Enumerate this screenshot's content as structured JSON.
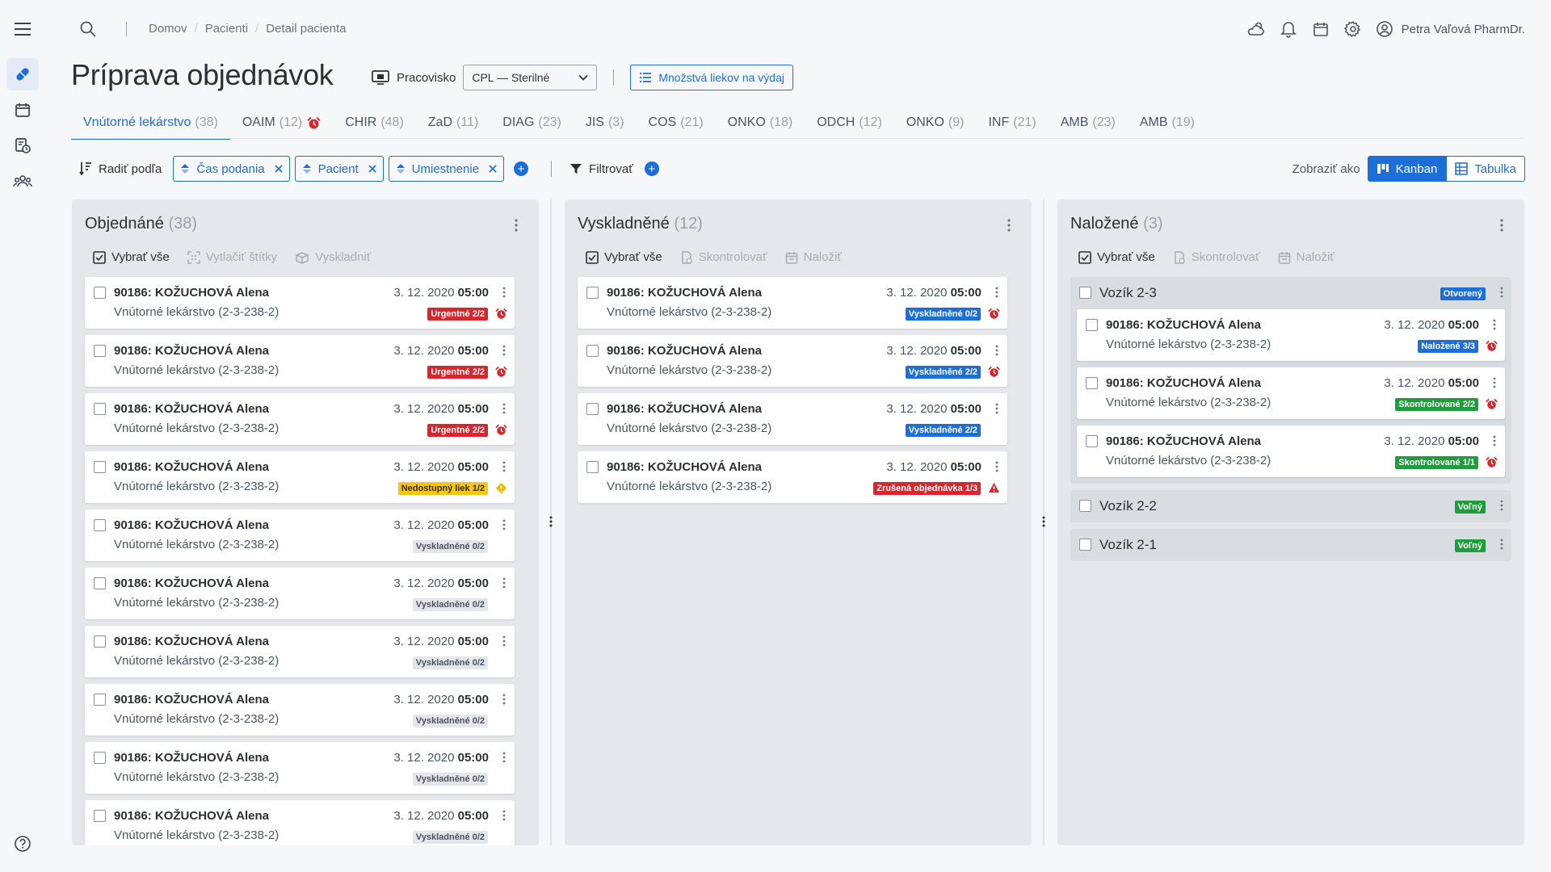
{
  "breadcrumbs": [
    "Domov",
    "Pacienti",
    "Detail pacienta"
  ],
  "user": {
    "name": "Petra Vaľová PharmDr."
  },
  "page_title": "Príprava objednávok",
  "workplace": {
    "label": "Pracovisko",
    "value": "CPL — Sterilné"
  },
  "qty_button": "Množstvá liekov na výdaj",
  "tabs": [
    {
      "label": "Vnútorné lekárstvo",
      "count": "(38)"
    },
    {
      "label": "OAIM",
      "count": "(12)"
    },
    {
      "label": "CHIR",
      "count": "(48)"
    },
    {
      "label": "ZaD",
      "count": "(11)"
    },
    {
      "label": "DIAG",
      "count": "(23)"
    },
    {
      "label": "JIS",
      "count": "(3)"
    },
    {
      "label": "COS",
      "count": "(21)"
    },
    {
      "label": "ONKO",
      "count": "(18)"
    },
    {
      "label": "ODCH",
      "count": "(12)"
    },
    {
      "label": "ONKO",
      "count": "(9)"
    },
    {
      "label": "INF",
      "count": "(21)"
    },
    {
      "label": "AMB",
      "count": "(23)"
    },
    {
      "label": "AMB",
      "count": "(19)"
    }
  ],
  "filterbar": {
    "sort_label": "Radiť podľa",
    "chips": [
      "Čas podania",
      "Pacient",
      "Umiestnenie"
    ],
    "filter_label": "Filtrovať",
    "view_label": "Zobraziť ako",
    "view_kanban": "Kanban",
    "view_table": "Tabulka"
  },
  "columns": [
    {
      "title": "Objednáné",
      "count": "(38)",
      "actions": [
        "Vybrať vše",
        "Vytlačiť štítky",
        "Vyskladniť"
      ],
      "cards": [
        {
          "patient": "90186: KOŽUCHOVÁ Alena",
          "location": "Vnútorné lekárstvo (2-3-238-2)",
          "date": "3. 12. 2020",
          "time": "05:00",
          "badge": "Urgentné 2/2",
          "badge_color": "#d8262c",
          "status_icon": "alarm-clock-icon"
        },
        {
          "patient": "90186: KOŽUCHOVÁ Alena",
          "location": "Vnútorné lekárstvo (2-3-238-2)",
          "date": "3. 12. 2020",
          "time": "05:00",
          "badge": "Urgentné 2/2",
          "badge_color": "#d8262c",
          "status_icon": "alarm-clock-icon"
        },
        {
          "patient": "90186: KOŽUCHOVÁ Alena",
          "location": "Vnútorné lekárstvo (2-3-238-2)",
          "date": "3. 12. 2020",
          "time": "05:00",
          "badge": "Urgentné 2/2",
          "badge_color": "#d8262c",
          "status_icon": "alarm-clock-icon"
        },
        {
          "patient": "90186: KOŽUCHOVÁ Alena",
          "location": "Vnútorné lekárstvo (2-3-238-2)",
          "date": "3. 12. 2020",
          "time": "05:00",
          "badge": "Nedostupný liek 1/2",
          "badge_color": "#f5c518",
          "status_icon": "warning-diamond-icon"
        },
        {
          "patient": "90186: KOŽUCHOVÁ Alena",
          "location": "Vnútorné lekárstvo (2-3-238-2)",
          "date": "3. 12. 2020",
          "time": "05:00",
          "badge": "Vyskladněné 0/2",
          "badge_color": "#e4e6e9",
          "status_icon": ""
        },
        {
          "patient": "90186: KOŽUCHOVÁ Alena",
          "location": "Vnútorné lekárstvo (2-3-238-2)",
          "date": "3. 12. 2020",
          "time": "05:00",
          "badge": "Vyskladněné 0/2",
          "badge_color": "#e4e6e9",
          "status_icon": ""
        },
        {
          "patient": "90186: KOŽUCHOVÁ Alena",
          "location": "Vnútorné lekárstvo (2-3-238-2)",
          "date": "3. 12. 2020",
          "time": "05:00",
          "badge": "Vyskladněné 0/2",
          "badge_color": "#e4e6e9",
          "status_icon": ""
        },
        {
          "patient": "90186: KOŽUCHOVÁ Alena",
          "location": "Vnútorné lekárstvo (2-3-238-2)",
          "date": "3. 12. 2020",
          "time": "05:00",
          "badge": "Vyskladněné 0/2",
          "badge_color": "#e4e6e9",
          "status_icon": ""
        },
        {
          "patient": "90186: KOŽUCHOVÁ Alena",
          "location": "Vnútorné lekárstvo (2-3-238-2)",
          "date": "3. 12. 2020",
          "time": "05:00",
          "badge": "Vyskladněné 0/2",
          "badge_color": "#e4e6e9",
          "status_icon": ""
        },
        {
          "patient": "90186: KOŽUCHOVÁ Alena",
          "location": "Vnútorné lekárstvo (2-3-238-2)",
          "date": "3. 12. 2020",
          "time": "05:00",
          "badge": "Vyskladněné 0/2",
          "badge_color": "#e4e6e9",
          "status_icon": ""
        }
      ]
    },
    {
      "title": "Vyskladněné",
      "count": "(12)",
      "actions": [
        "Vybrať vše",
        "Skontrolovať",
        "Naložiť"
      ],
      "cards": [
        {
          "patient": "90186: KOŽUCHOVÁ Alena",
          "location": "Vnútorné lekárstvo (2-3-238-2)",
          "date": "3. 12. 2020",
          "time": "05:00",
          "badge": "Vyskladněné 0/2",
          "badge_color": "#1e6ed8",
          "status_icon": "alarm-clock-icon"
        },
        {
          "patient": "90186: KOŽUCHOVÁ Alena",
          "location": "Vnútorné lekárstvo (2-3-238-2)",
          "date": "3. 12. 2020",
          "time": "05:00",
          "badge": "Vyskladněné 2/2",
          "badge_color": "#1e6ed8",
          "status_icon": "alarm-clock-icon"
        },
        {
          "patient": "90186: KOŽUCHOVÁ Alena",
          "location": "Vnútorné lekárstvo (2-3-238-2)",
          "date": "3. 12. 2020",
          "time": "05:00",
          "badge": "Vyskladněné 2/2",
          "badge_color": "#1e6ed8",
          "status_icon": ""
        },
        {
          "patient": "90186: KOŽUCHOVÁ Alena",
          "location": "Vnútorné lekárstvo (2-3-238-2)",
          "date": "3. 12. 2020",
          "time": "05:00",
          "badge": "Zrušená objednávka 1/3",
          "badge_color": "#d8262c",
          "status_icon": "warning-triangle-icon"
        }
      ]
    },
    {
      "title": "Naložené",
      "count": "(3)",
      "actions": [
        "Vybrať vše",
        "Skontrolovať",
        "Naložiť"
      ],
      "groups": [
        {
          "name": "Vozík 2-3",
          "badge": "Otvorený",
          "badge_color": "#1e6ed8",
          "cards": [
            {
              "patient": "90186: KOŽUCHOVÁ Alena",
              "location": "Vnútorné lekárstvo (2-3-238-2)",
              "date": "3. 12. 2020",
              "time": "05:00",
              "badge": "Naložené 3/3",
              "badge_color": "#1e6ed8",
              "status_icon": "alarm-clock-icon"
            },
            {
              "patient": "90186: KOŽUCHOVÁ Alena",
              "location": "Vnútorné lekárstvo (2-3-238-2)",
              "date": "3. 12. 2020",
              "time": "05:00",
              "badge": "Skontrolované 2/2",
              "badge_color": "#1f9d3a",
              "status_icon": "alarm-clock-icon"
            },
            {
              "patient": "90186: KOŽUCHOVÁ Alena",
              "location": "Vnútorné lekárstvo (2-3-238-2)",
              "date": "3. 12. 2020",
              "time": "05:00",
              "badge": "Skontrolované 1/1",
              "badge_color": "#1f9d3a",
              "status_icon": "alarm-clock-icon"
            }
          ]
        },
        {
          "name": "Vozík 2-2",
          "badge": "Voľný",
          "badge_color": "#1f9d3a",
          "cards": []
        },
        {
          "name": "Vozík 2-1",
          "badge": "Voľný",
          "badge_color": "#1f9d3a",
          "cards": []
        }
      ]
    }
  ]
}
